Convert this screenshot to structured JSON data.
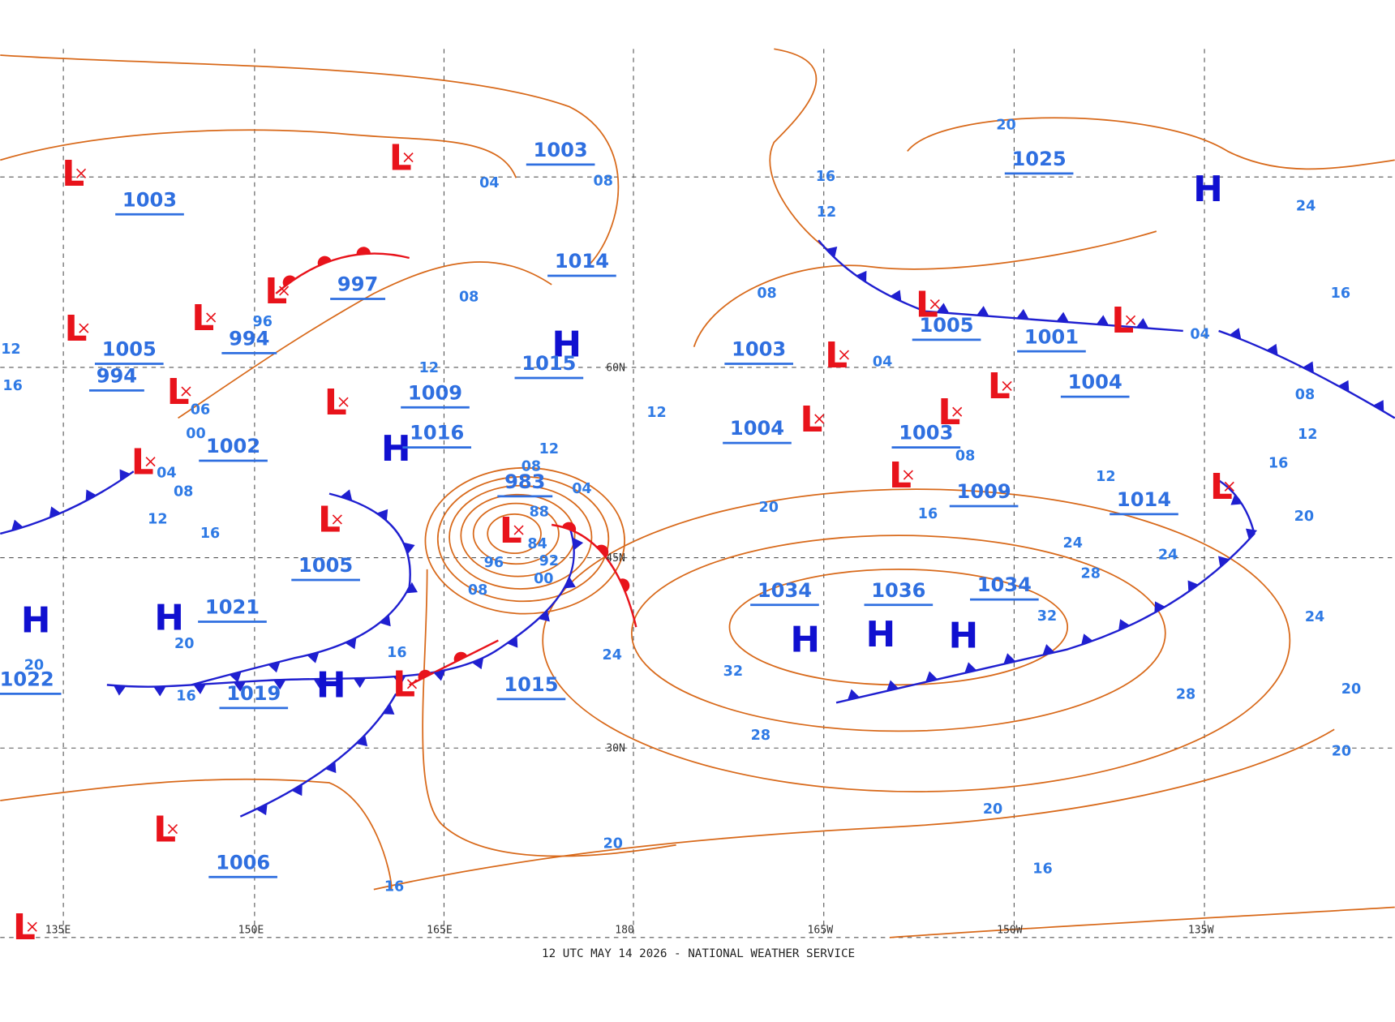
{
  "footer": "12 UTC MAY 14 2026 - NATIONAL WEATHER SERVICE",
  "longitude_labels": [
    "135E",
    "150E",
    "165E",
    "180",
    "165W",
    "150W",
    "135W"
  ],
  "latitude_labels": [
    "60N",
    "45N",
    "30N"
  ],
  "high_symbol": "H",
  "low_symbol": "L",
  "pressure_labels": [
    "1003",
    "1003",
    "997",
    "994",
    "1005",
    "994",
    "1002",
    "1009",
    "1016",
    "983",
    "1014",
    "1015",
    "1005",
    "1021",
    "1019",
    "1022",
    "1015",
    "1006",
    "1025",
    "1005",
    "1001",
    "1003",
    "1004",
    "1004",
    "1003",
    "1009",
    "1014",
    "1034",
    "1036",
    "1034"
  ],
  "isobar_labels": [
    "04",
    "08",
    "08",
    "12",
    "96",
    "06",
    "00",
    "04",
    "08",
    "12",
    "16",
    "12",
    "08",
    "04",
    "88",
    "84",
    "96",
    "92",
    "00",
    "08",
    "16",
    "24",
    "20",
    "20",
    "16",
    "20",
    "16",
    "16",
    "12",
    "08",
    "20",
    "24",
    "16",
    "04",
    "08",
    "12",
    "16",
    "20",
    "24",
    "20",
    "20",
    "28",
    "20",
    "16",
    "28",
    "32",
    "32",
    "28",
    "24",
    "24",
    "20",
    "16",
    "12",
    "08",
    "04",
    "12",
    "12",
    "16"
  ]
}
